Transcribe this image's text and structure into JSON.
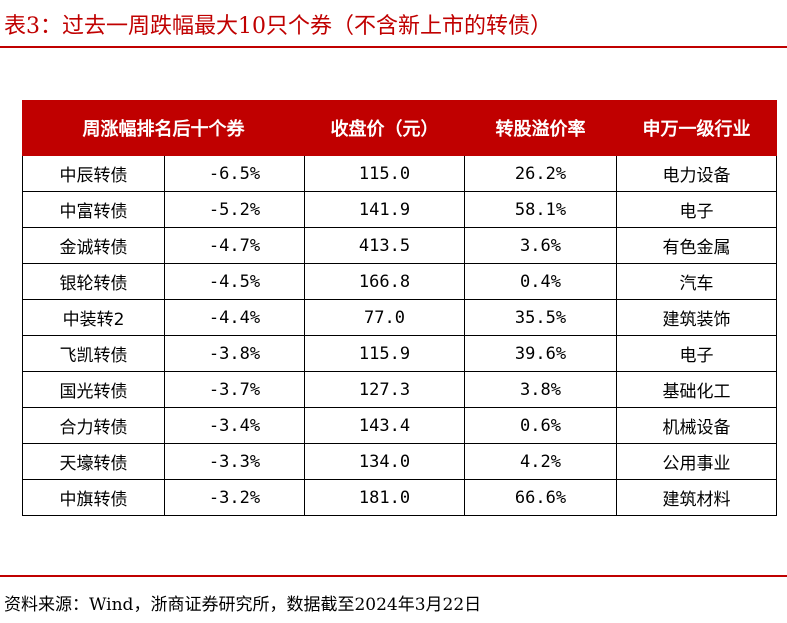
{
  "title": "表3：过去一周跌幅最大10只个券（不含新上市的转债）",
  "table": {
    "headers": [
      "周涨幅排名后十个券",
      "收盘价（元）",
      "转股溢价率",
      "申万一级行业"
    ],
    "rows": [
      {
        "name": "中辰转债",
        "change": "-6.5%",
        "close": "115.0",
        "premium": "26.2%",
        "industry": "电力设备"
      },
      {
        "name": "中富转债",
        "change": "-5.2%",
        "close": "141.9",
        "premium": "58.1%",
        "industry": "电子"
      },
      {
        "name": "金诚转债",
        "change": "-4.7%",
        "close": "413.5",
        "premium": "3.6%",
        "industry": "有色金属"
      },
      {
        "name": "银轮转债",
        "change": "-4.5%",
        "close": "166.8",
        "premium": "0.4%",
        "industry": "汽车"
      },
      {
        "name": "中装转2",
        "change": "-4.4%",
        "close": "77.0",
        "premium": "35.5%",
        "industry": "建筑装饰"
      },
      {
        "name": "飞凯转债",
        "change": "-3.8%",
        "close": "115.9",
        "premium": "39.6%",
        "industry": "电子"
      },
      {
        "name": "国光转债",
        "change": "-3.7%",
        "close": "127.3",
        "premium": "3.8%",
        "industry": "基础化工"
      },
      {
        "name": "合力转债",
        "change": "-3.4%",
        "close": "143.4",
        "premium": "0.6%",
        "industry": "机械设备"
      },
      {
        "name": "天壕转债",
        "change": "-3.3%",
        "close": "134.0",
        "premium": "4.2%",
        "industry": "公用事业"
      },
      {
        "name": "中旗转债",
        "change": "-3.2%",
        "close": "181.0",
        "premium": "66.6%",
        "industry": "建筑材料"
      }
    ]
  },
  "source": "资料来源：Wind，浙商证券研究所，数据截至2024年3月22日",
  "colors": {
    "accent": "#c00000",
    "header_text": "#ffffff"
  }
}
